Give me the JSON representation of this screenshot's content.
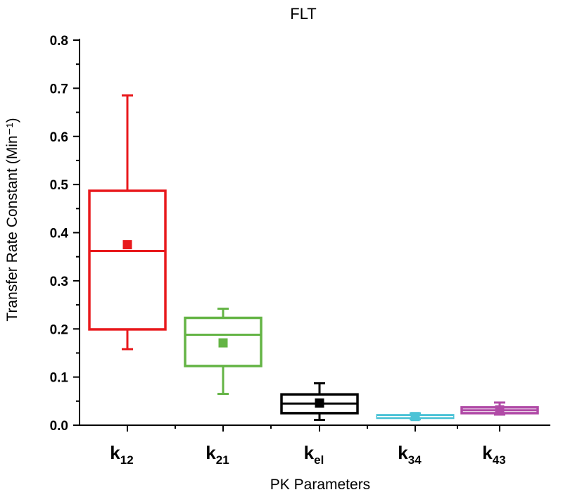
{
  "chart_data": {
    "type": "box",
    "title": "FLT",
    "xlabel": "PK Parameters",
    "ylabel": "Transfer Rate Constant (Min⁻¹)",
    "ylim": [
      0,
      0.8
    ],
    "yticks": [
      "0.0",
      "0.1",
      "0.2",
      "0.3",
      "0.4",
      "0.5",
      "0.6",
      "0.7",
      "0.8"
    ],
    "series": [
      {
        "name": "k12",
        "label_main": "k",
        "label_sub": "12",
        "color": "#e8191c",
        "whisker_low": 0.158,
        "q1": 0.199,
        "median": 0.362,
        "q3": 0.487,
        "whisker_high": 0.685,
        "mean": 0.375
      },
      {
        "name": "k21",
        "label_main": "k",
        "label_sub": "21",
        "color": "#64b445",
        "whisker_low": 0.065,
        "q1": 0.123,
        "median": 0.188,
        "q3": 0.223,
        "whisker_high": 0.242,
        "mean": 0.171
      },
      {
        "name": "kel",
        "label_main": "k",
        "label_sub": "el",
        "color": "#000000",
        "whisker_low": 0.011,
        "q1": 0.025,
        "median": 0.045,
        "q3": 0.064,
        "whisker_high": 0.087,
        "mean": 0.046
      },
      {
        "name": "k34",
        "label_main": "k",
        "label_sub": "34",
        "color": "#4cc3d6",
        "whisker_low": 0.013,
        "q1": 0.015,
        "median": 0.018,
        "q3": 0.021,
        "whisker_high": 0.024,
        "mean": 0.018
      },
      {
        "name": "k43",
        "label_main": "k",
        "label_sub": "43",
        "color": "#b04aa6",
        "whisker_low": 0.022,
        "q1": 0.025,
        "median": 0.031,
        "q3": 0.037,
        "whisker_high": 0.047,
        "mean": 0.032
      }
    ]
  }
}
